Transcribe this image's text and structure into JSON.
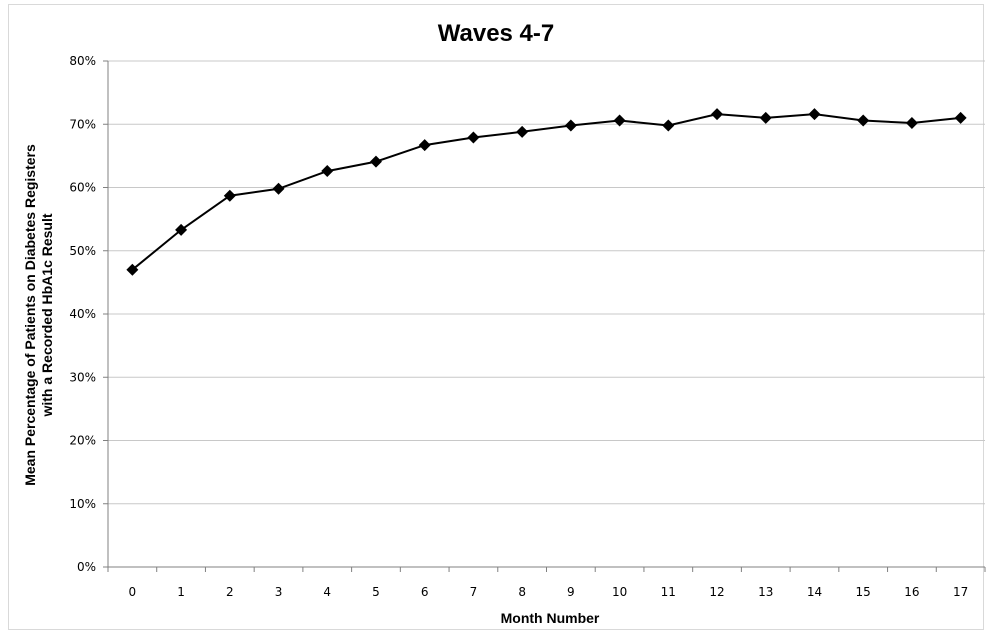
{
  "chart_data": {
    "type": "line",
    "title": "Waves 4-7",
    "xlabel": "Month Number",
    "ylabel": [
      "Mean Percentage of Patients on Diabetes Registers",
      "with a Recorded HbA1c Result"
    ],
    "categories": [
      "0",
      "1",
      "2",
      "3",
      "4",
      "5",
      "6",
      "7",
      "8",
      "9",
      "10",
      "11",
      "12",
      "13",
      "14",
      "15",
      "16",
      "17"
    ],
    "y_ticks": [
      "0%",
      "10%",
      "20%",
      "30%",
      "40%",
      "50%",
      "60%",
      "70%",
      "80%"
    ],
    "ylim": [
      0,
      80
    ],
    "grid": true,
    "legend": "none",
    "series": [
      {
        "values": [
          47.0,
          53.3,
          58.7,
          59.8,
          62.6,
          64.1,
          66.7,
          67.9,
          68.8,
          69.8,
          70.6,
          69.8,
          71.6,
          71.0,
          71.6,
          70.6,
          70.2,
          71.0
        ],
        "color": "#000000",
        "marker": "diamond"
      }
    ]
  }
}
